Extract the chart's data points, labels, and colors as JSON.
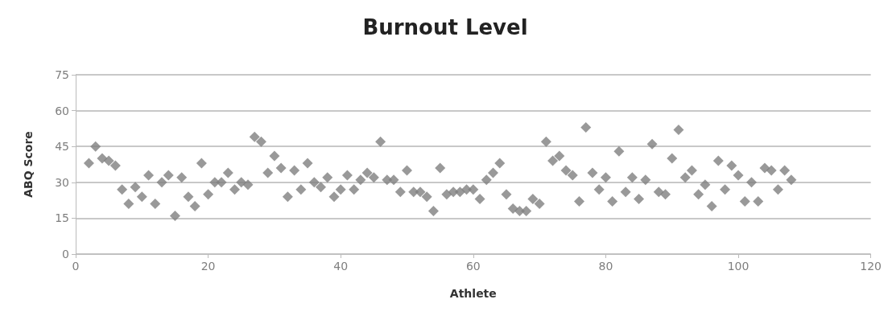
{
  "chart_data": {
    "type": "scatter",
    "title": "Burnout Level",
    "xlabel": "Athlete",
    "ylabel": "ABQ Score",
    "x": [
      2,
      3,
      4,
      5,
      6,
      7,
      8,
      9,
      10,
      11,
      12,
      13,
      14,
      15,
      16,
      17,
      18,
      19,
      20,
      21,
      22,
      23,
      24,
      25,
      26,
      27,
      28,
      29,
      30,
      31,
      32,
      33,
      34,
      35,
      36,
      37,
      38,
      39,
      40,
      41,
      42,
      43,
      44,
      45,
      46,
      47,
      48,
      49,
      50,
      51,
      52,
      53,
      54,
      55,
      56,
      57,
      58,
      59,
      60,
      61,
      62,
      63,
      64,
      65,
      66,
      67,
      68,
      69,
      70,
      71,
      72,
      73,
      74,
      75,
      76,
      77,
      78,
      79,
      80,
      81,
      82,
      83,
      84,
      85,
      86,
      87,
      88,
      89,
      90,
      91,
      92,
      93,
      94,
      95,
      96,
      97,
      98,
      99,
      100,
      101,
      102,
      103,
      104,
      105,
      106,
      107,
      108
    ],
    "series": [
      {
        "color": "#7f7f7f",
        "values": [
          38,
          45,
          40,
          39,
          37,
          27,
          21,
          28,
          24,
          33,
          21,
          30,
          33,
          16,
          32,
          24,
          20,
          38,
          25,
          30,
          30,
          34,
          27,
          30,
          29,
          49,
          47,
          34,
          41,
          36,
          24,
          35,
          27,
          38,
          30,
          28,
          32,
          24,
          27,
          33,
          27,
          31,
          34,
          32,
          47,
          31,
          31,
          26,
          35,
          26,
          26,
          24,
          18,
          36,
          25,
          26,
          26,
          27,
          27,
          23,
          31,
          34,
          38,
          25,
          19,
          18,
          18,
          23,
          21,
          47,
          39,
          41,
          35,
          33,
          22,
          53,
          34,
          27,
          32,
          22,
          43,
          26,
          32,
          23,
          31,
          46,
          26,
          25,
          40,
          52,
          32,
          35,
          25,
          29,
          20,
          39,
          27,
          37,
          33,
          22,
          30,
          22,
          36,
          35,
          27,
          35,
          31
        ]
      }
    ],
    "xlim": [
      0,
      120
    ],
    "xticks": [
      0,
      20,
      40,
      60,
      80,
      100,
      120
    ],
    "ylim": [
      0,
      75
    ],
    "yticks": [
      0,
      15,
      30,
      45,
      60,
      75
    ],
    "grid": "y",
    "marker": "diamond"
  }
}
